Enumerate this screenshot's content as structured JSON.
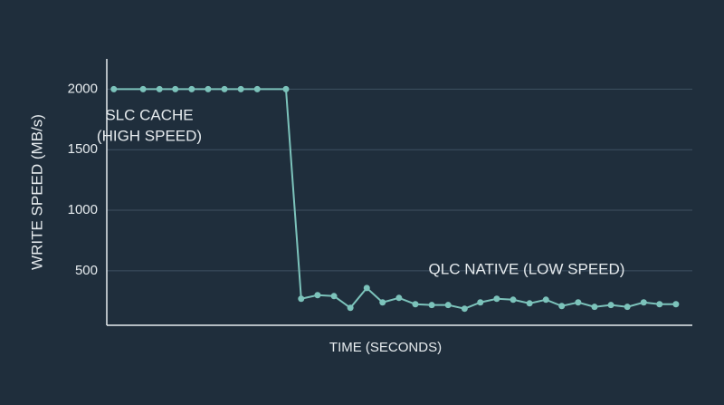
{
  "chart_data": {
    "type": "line",
    "y_label": "WRITE SPEED (MB/s)",
    "x_label": "TIME (SECONDS)",
    "annotations": [
      "SLC CACHE",
      "(HIGH SPEED)",
      "QLC NATIVE (LOW SPEED)"
    ],
    "xlim": [
      0,
      100
    ],
    "ylim": [
      50,
      2250
    ],
    "yticks": [
      500,
      1000,
      1500,
      2000
    ],
    "grid": true,
    "series": [
      {
        "color": "#7cc3bb",
        "x": [
          1.2,
          6.2,
          9,
          11.7,
          14.5,
          17.3,
          20.1,
          22.9,
          25.7,
          30.6,
          33.2,
          36,
          38.8,
          41.6,
          44.4,
          47.1,
          49.9,
          52.7,
          55.5,
          58.3,
          61.1,
          63.8,
          66.6,
          69.4,
          72.2,
          75,
          77.7,
          80.5,
          83.3,
          86.1,
          88.9,
          91.7,
          94.4,
          97.2
        ],
        "values": [
          2000,
          2000,
          2000,
          2000,
          2000,
          2000,
          2000,
          2000,
          2000,
          2000,
          269,
          299,
          291,
          194,
          358,
          239,
          276,
          224,
          217,
          217,
          187,
          239,
          269,
          261,
          231,
          261,
          209,
          239,
          202,
          217,
          202,
          239,
          224,
          224
        ]
      }
    ]
  }
}
